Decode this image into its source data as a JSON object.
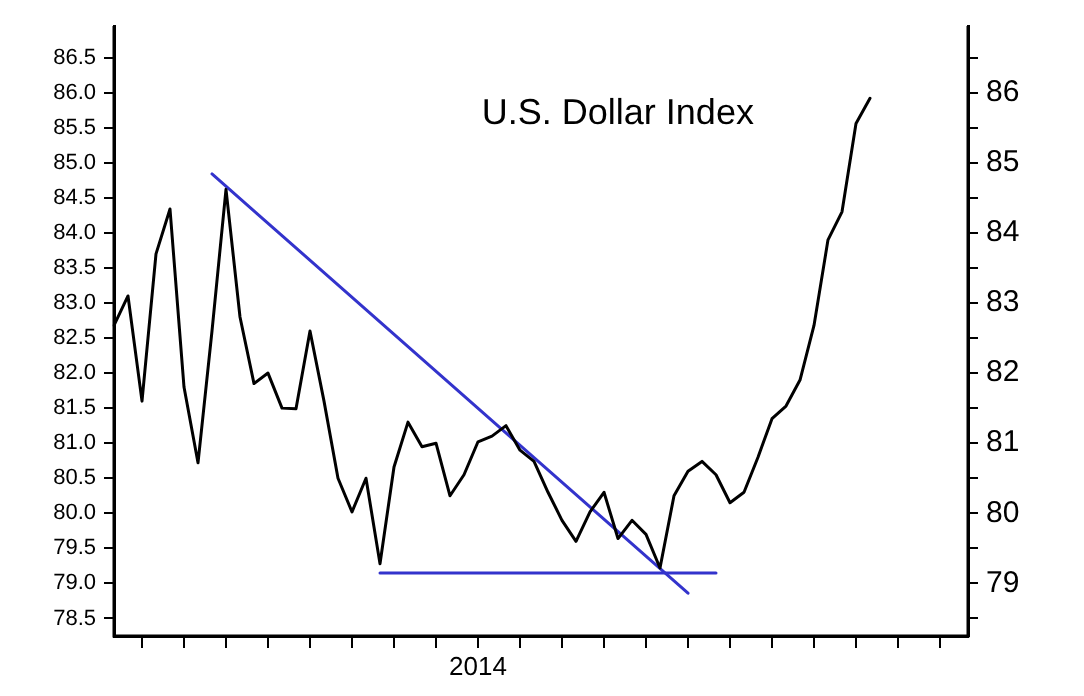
{
  "chart_data": {
    "type": "line",
    "title": "U.S. Dollar Index",
    "categories": [
      null,
      null,
      null,
      null,
      null,
      null,
      null,
      null,
      null,
      null,
      null,
      null,
      null,
      null,
      null,
      null,
      null,
      null,
      null,
      null,
      null,
      null,
      null,
      null,
      null,
      null,
      "2014",
      null,
      null,
      null,
      null,
      null,
      null,
      null,
      null,
      null,
      null,
      null,
      null,
      null,
      null,
      null,
      null,
      null,
      null,
      null,
      null,
      null,
      null,
      null,
      null,
      null,
      null,
      null,
      null,
      null,
      null,
      null,
      null,
      null,
      null,
      null
    ],
    "ylim": [
      78.25,
      86.95
    ],
    "yticks": [
      {
        "value": 78.5,
        "label": "78.5"
      },
      {
        "value": 79,
        "label": "79.0"
      },
      {
        "value": 79.5,
        "label": "79.5"
      },
      {
        "value": 80,
        "label": "80.0"
      },
      {
        "value": 80.5,
        "label": "80.5"
      },
      {
        "value": 81,
        "label": "81.0"
      },
      {
        "value": 81.5,
        "label": "81.5"
      },
      {
        "value": 82,
        "label": "82.0"
      },
      {
        "value": 82.5,
        "label": "82.5"
      },
      {
        "value": 83,
        "label": "83.0"
      },
      {
        "value": 83.5,
        "label": "83.5"
      },
      {
        "value": 84,
        "label": "84.0"
      },
      {
        "value": 84.5,
        "label": "84.5"
      },
      {
        "value": 85,
        "label": "85.0"
      },
      {
        "value": 85.5,
        "label": "85.5"
      },
      {
        "value": 86,
        "label": "86.0"
      },
      {
        "value": 86.5,
        "label": "86.5"
      }
    ],
    "y2lim": [
      78.25,
      86.95
    ],
    "y2ticks": [
      {
        "value": 78.5,
        "label": null
      },
      {
        "value": 79,
        "label": "79"
      },
      {
        "value": 79.5,
        "label": null
      },
      {
        "value": 80,
        "label": "80"
      },
      {
        "value": 80.5,
        "label": null
      },
      {
        "value": 81,
        "label": "81"
      },
      {
        "value": 81.5,
        "label": null
      },
      {
        "value": 82,
        "label": "82"
      },
      {
        "value": 82.5,
        "label": null
      },
      {
        "value": 83,
        "label": "83"
      },
      {
        "value": 83.5,
        "label": null
      },
      {
        "value": 84,
        "label": "84"
      },
      {
        "value": 84.5,
        "label": null
      },
      {
        "value": 85,
        "label": "85"
      },
      {
        "value": 85.5,
        "label": null
      },
      {
        "value": 86,
        "label": "86"
      },
      {
        "value": 86.5,
        "label": null
      }
    ],
    "marker": "none",
    "line_style": "solid",
    "series": [
      {
        "color": "#000000",
        "values": [
          82.68,
          83.1,
          81.6,
          83.7,
          84.34,
          81.8,
          80.72,
          82.6,
          84.62,
          82.8,
          81.85,
          82.0,
          81.5,
          81.49,
          82.6,
          81.6,
          80.5,
          80.02,
          80.5,
          79.28,
          80.66,
          81.3,
          80.95,
          81.0,
          80.25,
          80.55,
          81.02,
          81.1,
          81.25,
          80.9,
          80.74,
          80.3,
          79.9,
          79.6,
          80.02,
          80.3,
          79.64,
          79.9,
          79.7,
          79.22,
          80.25,
          80.6,
          80.74,
          80.55,
          80.15,
          80.3,
          80.8,
          81.35,
          81.53,
          81.9,
          82.68,
          83.9,
          84.3,
          85.56,
          85.92,
          null,
          null,
          null,
          null,
          null,
          null,
          null
        ]
      },
      {
        "color": "#3333cc",
        "values": [
          null,
          null,
          null,
          null,
          null,
          null,
          null,
          84.84,
          null,
          null,
          null,
          null,
          null,
          null,
          null,
          null,
          null,
          null,
          null,
          null,
          null,
          null,
          null,
          null,
          null,
          null,
          null,
          null,
          null,
          null,
          null,
          null,
          null,
          null,
          null,
          null,
          null,
          null,
          null,
          null,
          null,
          78.86,
          null,
          null,
          null,
          null,
          null,
          null,
          null,
          null,
          null,
          null,
          null,
          null,
          null,
          null,
          null,
          null,
          null,
          null,
          null,
          null
        ]
      },
      {
        "color": "#3333cc",
        "values": [
          null,
          null,
          null,
          null,
          null,
          null,
          null,
          null,
          null,
          null,
          null,
          null,
          null,
          null,
          null,
          null,
          null,
          null,
          null,
          79.15,
          null,
          null,
          null,
          null,
          null,
          null,
          null,
          null,
          null,
          null,
          null,
          null,
          null,
          null,
          null,
          null,
          null,
          null,
          null,
          null,
          null,
          null,
          null,
          79.15,
          null,
          null,
          null,
          null,
          null,
          null,
          null,
          null,
          null,
          null,
          null,
          null,
          null,
          null,
          null,
          null,
          null,
          null
        ]
      }
    ]
  }
}
